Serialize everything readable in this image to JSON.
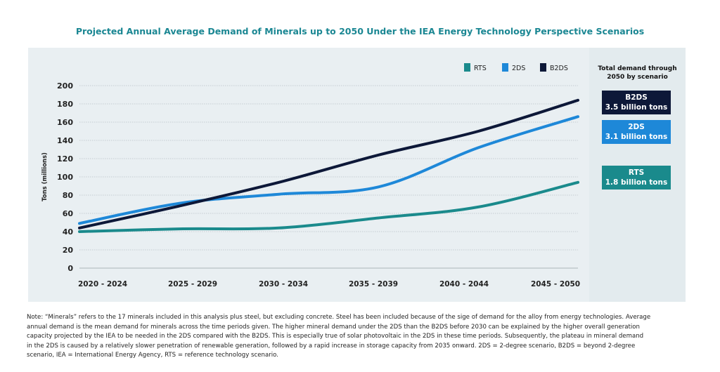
{
  "chart_data": {
    "type": "line",
    "title": "Projected Annual Average Demand of Minerals up to 2050 Under the IEA Energy Technology Perspective Scenarios",
    "ylabel": "Tons (millions)",
    "xlabel": "",
    "categories": [
      "2020 - 2024",
      "2025 - 2029",
      "2030 - 2034",
      "2035 - 2039",
      "2040 - 2044",
      "2045 - 2050"
    ],
    "ylim": [
      0,
      200
    ],
    "yticks": [
      0,
      20,
      40,
      60,
      80,
      100,
      120,
      140,
      160,
      180,
      200
    ],
    "grid": true,
    "legend_position": "top-right",
    "series": [
      {
        "name": "RTS",
        "color": "#1a8a8c",
        "values": [
          40,
          43,
          44,
          55,
          67,
          94
        ]
      },
      {
        "name": "2DS",
        "color": "#1e88d8",
        "values": [
          49,
          71,
          81,
          89,
          132,
          166
        ]
      },
      {
        "name": "B2DS",
        "color": "#0d1838",
        "values": [
          44,
          68,
          94,
          124,
          150,
          184
        ]
      }
    ]
  },
  "side": {
    "heading_1": "Total demand through",
    "heading_2": "2050 by scenario",
    "boxes": [
      {
        "name": "B2DS",
        "value": "3.5 billion tons",
        "color": "#0d1838"
      },
      {
        "name": "2DS",
        "value": "3.1 billion tons",
        "color": "#1e88d8"
      },
      {
        "name": "RTS",
        "value": "1.8 billion tons",
        "color": "#1a8a8c"
      }
    ]
  },
  "note": [
    "Note: “Minerals” refers to the 17 minerals included in this analysis plus steel, but excluding concrete. Steel has been included because of the sige of demand for the alloy from energy technologies. Average",
    "annual demand is the mean demand for minerals across the time periods given. The higher mineral demand under the 2DS than the B2DS before 2030 can be explained by the higher overall generation",
    "capacity projected by the IEA to be needed in the 2DS compared with the B2DS. This is especially true of solar photovoltaic in the 2DS in these time periods. Subsequently, the plateau in mineral demand",
    "in the 2DS is caused by a relatively slower penetration of renewable generation, followed by a rapid increase in storage capacity from 2035 onward. 2DS = 2-degree scenario, B2DS = beyond 2-degree",
    "scenario, IEA = International Energy Agency, RTS = reference technology scenario."
  ]
}
